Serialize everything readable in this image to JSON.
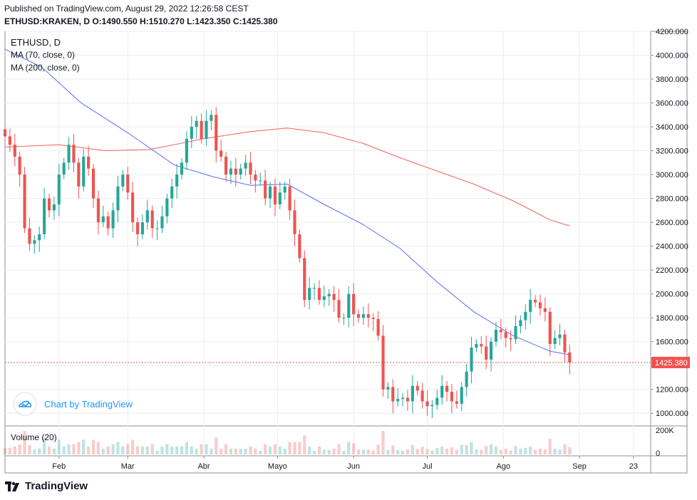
{
  "header": {
    "published": "Published on TradingView.com, August 29, 2022 12:26:58 CEST",
    "symbol": "ETHUSD:KRAKEN, D",
    "ohlc": "O:1490.550 H:1510.270 L:1423.350 C:1425.380"
  },
  "legend": {
    "symbol": "ETHUSD, D",
    "ma70": "MA (70, close, 0)",
    "ma200": "MA (200, close, 0)"
  },
  "volume_label": "Volume (20)",
  "watermark": "Chart by TradingView",
  "brand": "TradingView",
  "price_label": "1425.380",
  "colors": {
    "up": "#26a69a",
    "down": "#ef5350",
    "ma70": "#5d6bf0",
    "ma200": "#f0655a",
    "grid": "#e9edf2",
    "accent": "#2196f3"
  },
  "chart_data": {
    "type": "candlestick",
    "title": "ETHUSD, D",
    "last_price": 1425.38,
    "y_axis": {
      "min": 900,
      "max": 4200,
      "ticks": [
        1000,
        1200,
        1400,
        1600,
        1800,
        2000,
        2200,
        2400,
        2600,
        2800,
        3000,
        3200,
        3400,
        3600,
        3800,
        4000,
        4200
      ]
    },
    "y_tick_labels": [
      "1000.000",
      "1200.000",
      "1400.000",
      "1600.000",
      "1800.000",
      "2000.000",
      "2200.000",
      "2400.000",
      "2600.000",
      "2800.000",
      "3000.000",
      "3200.000",
      "3400.000",
      "3600.000",
      "3800.000",
      "4000.000",
      "4200.000"
    ],
    "x_labels": [
      {
        "label": "Feb",
        "date": "2022-02-01"
      },
      {
        "label": "Mar",
        "date": "2022-03-01"
      },
      {
        "label": "Abr",
        "date": "2022-04-01"
      },
      {
        "label": "Mayo",
        "date": "2022-05-01"
      },
      {
        "label": "Jun",
        "date": "2022-06-01"
      },
      {
        "label": "Jul",
        "date": "2022-07-01"
      },
      {
        "label": "Ago",
        "date": "2022-08-01"
      },
      {
        "label": "Sep",
        "date": "2022-09-01"
      },
      {
        "label": "23",
        "date": "2022-09-23"
      }
    ],
    "x_range": [
      "2022-01-10",
      "2022-09-30"
    ],
    "closes": [
      {
        "date": "2022-01-10",
        "close": 3320
      },
      {
        "date": "2022-01-12",
        "close": 3250
      },
      {
        "date": "2022-01-14",
        "close": 3150
      },
      {
        "date": "2022-01-16",
        "close": 3000
      },
      {
        "date": "2022-01-18",
        "close": 2550
      },
      {
        "date": "2022-01-20",
        "close": 2420
      },
      {
        "date": "2022-01-22",
        "close": 2450
      },
      {
        "date": "2022-01-24",
        "close": 2500
      },
      {
        "date": "2022-01-26",
        "close": 2800
      },
      {
        "date": "2022-01-28",
        "close": 2700
      },
      {
        "date": "2022-01-30",
        "close": 2750
      },
      {
        "date": "2022-02-01",
        "close": 3000
      },
      {
        "date": "2022-02-03",
        "close": 3100
      },
      {
        "date": "2022-02-05",
        "close": 3250
      },
      {
        "date": "2022-02-07",
        "close": 3100
      },
      {
        "date": "2022-02-09",
        "close": 2900
      },
      {
        "date": "2022-02-11",
        "close": 3150
      },
      {
        "date": "2022-02-13",
        "close": 3050
      },
      {
        "date": "2022-02-15",
        "close": 2800
      },
      {
        "date": "2022-02-17",
        "close": 2600
      },
      {
        "date": "2022-02-19",
        "close": 2650
      },
      {
        "date": "2022-02-21",
        "close": 2550
      },
      {
        "date": "2022-02-23",
        "close": 2700
      },
      {
        "date": "2022-02-25",
        "close": 2900
      },
      {
        "date": "2022-02-27",
        "close": 3000
      },
      {
        "date": "2022-03-01",
        "close": 2850
      },
      {
        "date": "2022-03-03",
        "close": 2600
      },
      {
        "date": "2022-03-05",
        "close": 2500
      },
      {
        "date": "2022-03-07",
        "close": 2600
      },
      {
        "date": "2022-03-09",
        "close": 2700
      },
      {
        "date": "2022-03-11",
        "close": 2550
      },
      {
        "date": "2022-03-13",
        "close": 2550
      },
      {
        "date": "2022-03-15",
        "close": 2650
      },
      {
        "date": "2022-03-17",
        "close": 2800
      },
      {
        "date": "2022-03-19",
        "close": 2900
      },
      {
        "date": "2022-03-21",
        "close": 3000
      },
      {
        "date": "2022-03-23",
        "close": 3100
      },
      {
        "date": "2022-03-25",
        "close": 3300
      },
      {
        "date": "2022-03-27",
        "close": 3400
      },
      {
        "date": "2022-03-29",
        "close": 3450
      },
      {
        "date": "2022-03-31",
        "close": 3300
      },
      {
        "date": "2022-04-02",
        "close": 3450
      },
      {
        "date": "2022-04-04",
        "close": 3500
      },
      {
        "date": "2022-04-06",
        "close": 3200
      },
      {
        "date": "2022-04-08",
        "close": 3150
      },
      {
        "date": "2022-04-10",
        "close": 3000
      },
      {
        "date": "2022-04-12",
        "close": 3050
      },
      {
        "date": "2022-04-14",
        "close": 3000
      },
      {
        "date": "2022-04-16",
        "close": 3050
      },
      {
        "date": "2022-04-18",
        "close": 3100
      },
      {
        "date": "2022-04-20",
        "close": 3000
      },
      {
        "date": "2022-04-22",
        "close": 2950
      },
      {
        "date": "2022-04-24",
        "close": 2950
      },
      {
        "date": "2022-04-26",
        "close": 2800
      },
      {
        "date": "2022-04-28",
        "close": 2900
      },
      {
        "date": "2022-04-30",
        "close": 2750
      },
      {
        "date": "2022-05-02",
        "close": 2850
      },
      {
        "date": "2022-05-04",
        "close": 2900
      },
      {
        "date": "2022-05-06",
        "close": 2700
      },
      {
        "date": "2022-05-08",
        "close": 2500
      },
      {
        "date": "2022-05-10",
        "close": 2300
      },
      {
        "date": "2022-05-12",
        "close": 1950
      },
      {
        "date": "2022-05-14",
        "close": 2050
      },
      {
        "date": "2022-05-16",
        "close": 2050
      },
      {
        "date": "2022-05-18",
        "close": 1950
      },
      {
        "date": "2022-05-20",
        "close": 1980
      },
      {
        "date": "2022-05-22",
        "close": 2000
      },
      {
        "date": "2022-05-24",
        "close": 1950
      },
      {
        "date": "2022-05-26",
        "close": 1800
      },
      {
        "date": "2022-05-28",
        "close": 1800
      },
      {
        "date": "2022-05-30",
        "close": 2000
      },
      {
        "date": "2022-06-01",
        "close": 1830
      },
      {
        "date": "2022-06-03",
        "close": 1800
      },
      {
        "date": "2022-06-05",
        "close": 1830
      },
      {
        "date": "2022-06-07",
        "close": 1800
      },
      {
        "date": "2022-06-09",
        "close": 1790
      },
      {
        "date": "2022-06-11",
        "close": 1650
      },
      {
        "date": "2022-06-13",
        "close": 1200
      },
      {
        "date": "2022-06-15",
        "close": 1220
      },
      {
        "date": "2022-06-17",
        "close": 1100
      },
      {
        "date": "2022-06-19",
        "close": 1120
      },
      {
        "date": "2022-06-21",
        "close": 1130
      },
      {
        "date": "2022-06-23",
        "close": 1100
      },
      {
        "date": "2022-06-25",
        "close": 1230
      },
      {
        "date": "2022-06-27",
        "close": 1190
      },
      {
        "date": "2022-06-29",
        "close": 1100
      },
      {
        "date": "2022-07-01",
        "close": 1060
      },
      {
        "date": "2022-07-03",
        "close": 1070
      },
      {
        "date": "2022-07-05",
        "close": 1130
      },
      {
        "date": "2022-07-07",
        "close": 1230
      },
      {
        "date": "2022-07-09",
        "close": 1180
      },
      {
        "date": "2022-07-11",
        "close": 1100
      },
      {
        "date": "2022-07-13",
        "close": 1080
      },
      {
        "date": "2022-07-15",
        "close": 1220
      },
      {
        "date": "2022-07-17",
        "close": 1350
      },
      {
        "date": "2022-07-19",
        "close": 1550
      },
      {
        "date": "2022-07-21",
        "close": 1580
      },
      {
        "date": "2022-07-23",
        "close": 1560
      },
      {
        "date": "2022-07-25",
        "close": 1450
      },
      {
        "date": "2022-07-27",
        "close": 1600
      },
      {
        "date": "2022-07-29",
        "close": 1700
      },
      {
        "date": "2022-07-31",
        "close": 1680
      },
      {
        "date": "2022-08-02",
        "close": 1630
      },
      {
        "date": "2022-08-04",
        "close": 1620
      },
      {
        "date": "2022-08-06",
        "close": 1730
      },
      {
        "date": "2022-08-08",
        "close": 1780
      },
      {
        "date": "2022-08-10",
        "close": 1850
      },
      {
        "date": "2022-08-12",
        "close": 1950
      },
      {
        "date": "2022-08-14",
        "close": 1930
      },
      {
        "date": "2022-08-16",
        "close": 1880
      },
      {
        "date": "2022-08-18",
        "close": 1850
      },
      {
        "date": "2022-08-20",
        "close": 1580
      },
      {
        "date": "2022-08-22",
        "close": 1630
      },
      {
        "date": "2022-08-24",
        "close": 1660
      },
      {
        "date": "2022-08-26",
        "close": 1510
      },
      {
        "date": "2022-08-28",
        "close": 1425
      }
    ],
    "ma70": [
      {
        "date": "2022-01-10",
        "value": 4050
      },
      {
        "date": "2022-01-25",
        "value": 3900
      },
      {
        "date": "2022-02-10",
        "value": 3600
      },
      {
        "date": "2022-03-01",
        "value": 3350
      },
      {
        "date": "2022-03-20",
        "value": 3080
      },
      {
        "date": "2022-04-05",
        "value": 2980
      },
      {
        "date": "2022-04-20",
        "value": 2910
      },
      {
        "date": "2022-05-05",
        "value": 2920
      },
      {
        "date": "2022-05-20",
        "value": 2750
      },
      {
        "date": "2022-06-05",
        "value": 2580
      },
      {
        "date": "2022-06-20",
        "value": 2380
      },
      {
        "date": "2022-07-05",
        "value": 2100
      },
      {
        "date": "2022-07-20",
        "value": 1850
      },
      {
        "date": "2022-08-05",
        "value": 1650
      },
      {
        "date": "2022-08-20",
        "value": 1520
      },
      {
        "date": "2022-08-28",
        "value": 1490
      }
    ],
    "ma200": [
      {
        "date": "2022-01-10",
        "value": 3230
      },
      {
        "date": "2022-02-01",
        "value": 3250
      },
      {
        "date": "2022-02-20",
        "value": 3200
      },
      {
        "date": "2022-03-10",
        "value": 3210
      },
      {
        "date": "2022-04-01",
        "value": 3300
      },
      {
        "date": "2022-04-20",
        "value": 3360
      },
      {
        "date": "2022-05-05",
        "value": 3390
      },
      {
        "date": "2022-05-20",
        "value": 3350
      },
      {
        "date": "2022-06-05",
        "value": 3260
      },
      {
        "date": "2022-06-20",
        "value": 3140
      },
      {
        "date": "2022-07-05",
        "value": 3030
      },
      {
        "date": "2022-07-20",
        "value": 2920
      },
      {
        "date": "2022-08-05",
        "value": 2780
      },
      {
        "date": "2022-08-20",
        "value": 2620
      },
      {
        "date": "2022-08-28",
        "value": 2570
      }
    ],
    "volume": {
      "label": "Volume (20)",
      "y_ticks": [
        0,
        200000
      ],
      "y_tick_labels": [
        "0",
        "200K"
      ]
    }
  }
}
